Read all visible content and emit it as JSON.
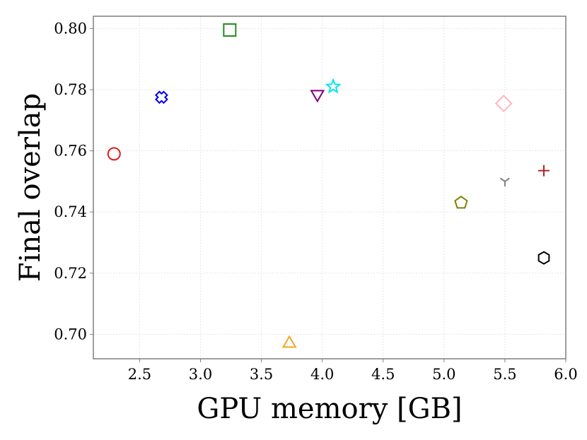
{
  "chart_data": {
    "type": "scatter",
    "title": "",
    "xlabel": "GPU memory [GB]",
    "ylabel": "Final overlap",
    "xlim": [
      2.12,
      6.0
    ],
    "ylim": [
      0.692,
      0.804
    ],
    "grid": true,
    "xticks": [
      2.5,
      3.0,
      3.5,
      4.0,
      4.5,
      5.0,
      5.5,
      6.0
    ],
    "xtick_labels": [
      "2.5",
      "3.0",
      "3.5",
      "4.0",
      "4.5",
      "5.0",
      "5.5",
      "6.0"
    ],
    "yticks": [
      0.7,
      0.72,
      0.74,
      0.76,
      0.78,
      0.8
    ],
    "ytick_labels": [
      "0.70",
      "0.72",
      "0.74",
      "0.76",
      "0.78",
      "0.80"
    ],
    "points": [
      {
        "x": 2.29,
        "y": 0.759,
        "marker": "circle",
        "color": "#e41a1c"
      },
      {
        "x": 2.68,
        "y": 0.7775,
        "marker": "x-cross",
        "color": "#0000ee"
      },
      {
        "x": 3.24,
        "y": 0.7995,
        "marker": "square",
        "color": "#228b22"
      },
      {
        "x": 3.73,
        "y": 0.697,
        "marker": "triangle-up",
        "color": "#f5a623"
      },
      {
        "x": 3.96,
        "y": 0.7785,
        "marker": "triangle-down",
        "color": "#800080"
      },
      {
        "x": 4.09,
        "y": 0.781,
        "marker": "star",
        "color": "#00e5ee"
      },
      {
        "x": 5.14,
        "y": 0.743,
        "marker": "pentagon",
        "color": "#808000"
      },
      {
        "x": 5.49,
        "y": 0.7755,
        "marker": "diamond",
        "color": "#ffb6c1"
      },
      {
        "x": 5.5,
        "y": 0.75,
        "marker": "tri-down",
        "color": "#808080"
      },
      {
        "x": 5.82,
        "y": 0.7535,
        "marker": "plus",
        "color": "#b22222"
      },
      {
        "x": 5.82,
        "y": 0.725,
        "marker": "hexagon",
        "color": "#000000"
      }
    ]
  }
}
